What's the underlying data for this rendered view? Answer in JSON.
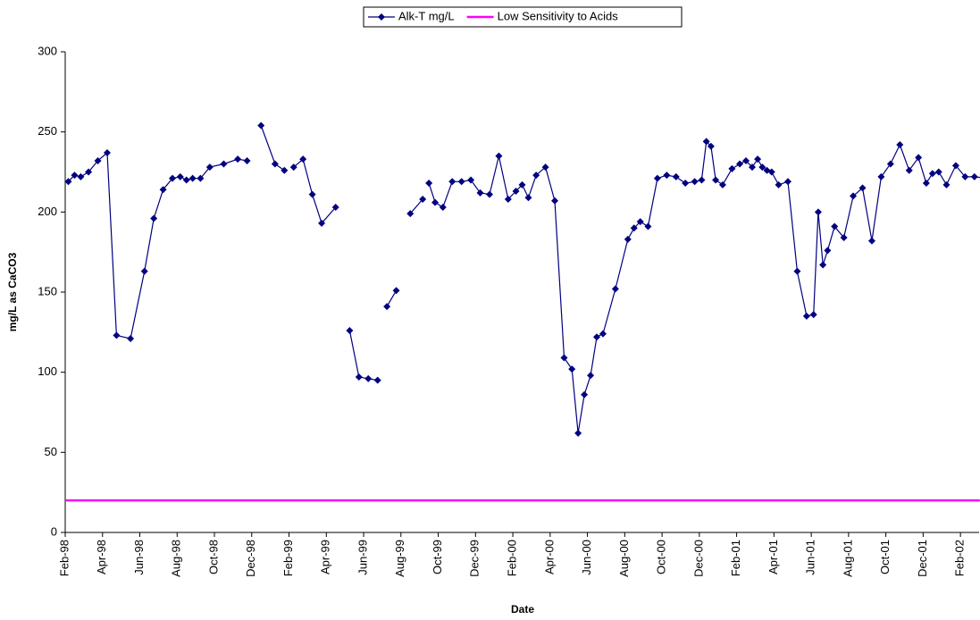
{
  "chart_data": {
    "type": "line",
    "x_label": "Date",
    "y_label": "mg/L as CaCO3",
    "xlim": [
      "1998-02",
      "2002-03"
    ],
    "xticks": [
      {
        "value": "1998-02",
        "label": "Feb-98"
      },
      {
        "value": "1998-04",
        "label": "Apr-98"
      },
      {
        "value": "1998-06",
        "label": "Jun-98"
      },
      {
        "value": "1998-08",
        "label": "Aug-98"
      },
      {
        "value": "1998-10",
        "label": "Oct-98"
      },
      {
        "value": "1998-12",
        "label": "Dec-98"
      },
      {
        "value": "1999-02",
        "label": "Feb-99"
      },
      {
        "value": "1999-04",
        "label": "Apr-99"
      },
      {
        "value": "1999-06",
        "label": "Jun-99"
      },
      {
        "value": "1999-08",
        "label": "Aug-99"
      },
      {
        "value": "1999-10",
        "label": "Oct-99"
      },
      {
        "value": "1999-12",
        "label": "Dec-99"
      },
      {
        "value": "2000-02",
        "label": "Feb-00"
      },
      {
        "value": "2000-04",
        "label": "Apr-00"
      },
      {
        "value": "2000-06",
        "label": "Jun-00"
      },
      {
        "value": "2000-08",
        "label": "Aug-00"
      },
      {
        "value": "2000-10",
        "label": "Oct-00"
      },
      {
        "value": "2000-12",
        "label": "Dec-00"
      },
      {
        "value": "2001-02",
        "label": "Feb-01"
      },
      {
        "value": "2001-04",
        "label": "Apr-01"
      },
      {
        "value": "2001-06",
        "label": "Jun-01"
      },
      {
        "value": "2001-08",
        "label": "Aug-01"
      },
      {
        "value": "2001-10",
        "label": "Oct-01"
      },
      {
        "value": "2001-12",
        "label": "Dec-01"
      },
      {
        "value": "2002-02",
        "label": "Feb-02"
      }
    ],
    "ylim": [
      0,
      300
    ],
    "yticks": [
      0,
      50,
      100,
      150,
      200,
      250,
      300
    ],
    "legend": "top",
    "series": [
      {
        "name": "Alk-T mg/L",
        "color": "#000080",
        "marker": "diamond",
        "x": [
          "1998-02",
          "1998-02",
          "1998-02",
          "1998-03",
          "1998-03",
          "1998-04",
          "1998-04",
          "1998-05",
          "1998-06",
          "1998-06",
          "1998-07",
          "1998-07",
          "1998-08",
          "1998-08",
          "1998-08",
          "1998-09",
          "1998-09",
          "1998-10",
          "1998-11",
          "1998-11",
          null,
          "1998-12",
          "1999-01",
          "1999-01",
          null,
          "1999-02",
          "1999-02",
          "1999-03",
          "1999-03",
          "1999-04",
          null,
          "1999-05",
          "1999-05",
          "1999-06",
          "1999-06",
          null,
          "1999-07",
          "1999-07",
          null,
          "1999-08",
          "1999-09",
          null,
          "1999-09",
          "1999-09",
          "1999-10",
          "1999-10",
          "1999-11",
          "1999-11",
          "1999-12",
          "1999-12",
          "2000-01",
          "2000-01",
          "2000-02",
          "2000-02",
          "2000-02",
          "2000-03",
          "2000-03",
          "2000-04",
          "2000-04",
          "2000-05",
          "2000-05",
          "2000-05",
          "2000-06",
          "2000-06",
          "2000-06",
          "2000-07",
          "2000-08",
          "2000-08",
          "2000-08",
          "2000-09",
          "2000-09",
          "2000-10",
          "2000-10",
          "2000-11",
          "2000-11",
          "2000-12",
          "2000-12",
          "2000-12",
          "2000-12",
          "2001-01",
          "2001-01",
          "2001-02",
          "2001-02",
          "2001-02",
          "2001-03",
          "2001-03",
          "2001-03",
          "2001-03",
          "2001-04",
          "2001-04",
          "2001-05",
          "2001-05",
          "2001-06",
          "2001-06",
          "2001-06",
          "2001-06",
          "2001-07",
          "2001-07",
          "2001-08",
          "2001-08",
          "2001-09",
          "2001-09",
          "2001-10",
          "2001-10",
          "2001-11",
          "2001-11",
          "2001-12",
          "2001-12",
          "2001-12",
          "2002-01",
          "2002-01",
          "2002-02",
          "2002-02",
          "2002-03"
        ],
        "values": [
          219,
          223,
          222,
          225,
          232,
          237,
          123,
          121,
          163,
          196,
          214,
          221,
          222,
          220,
          221,
          221,
          228,
          230,
          233,
          232,
          null,
          254,
          230,
          226,
          null,
          228,
          233,
          211,
          193,
          203,
          null,
          126,
          97,
          96,
          95,
          null,
          141,
          151,
          null,
          199,
          208,
          null,
          218,
          206,
          203,
          219,
          219,
          220,
          212,
          211,
          235,
          208,
          213,
          217,
          209,
          223,
          228,
          207,
          109,
          102,
          62,
          86,
          98,
          122,
          124,
          152,
          183,
          190,
          194,
          191,
          221,
          223,
          222,
          218,
          219,
          220,
          244,
          241,
          220,
          217,
          227,
          230,
          232,
          228,
          233,
          228,
          226,
          225,
          217,
          219,
          163,
          135,
          136,
          200,
          167,
          176,
          191,
          184,
          210,
          215,
          182,
          222,
          230,
          242,
          226,
          234,
          218,
          224,
          225,
          217,
          229,
          222,
          222,
          221
        ]
      },
      {
        "name": "Low Sensitivity to Acids",
        "color": "#ff00ff",
        "marker": "dash",
        "x": [
          "1998-02",
          "2002-03"
        ],
        "values": [
          20,
          20
        ]
      }
    ]
  }
}
